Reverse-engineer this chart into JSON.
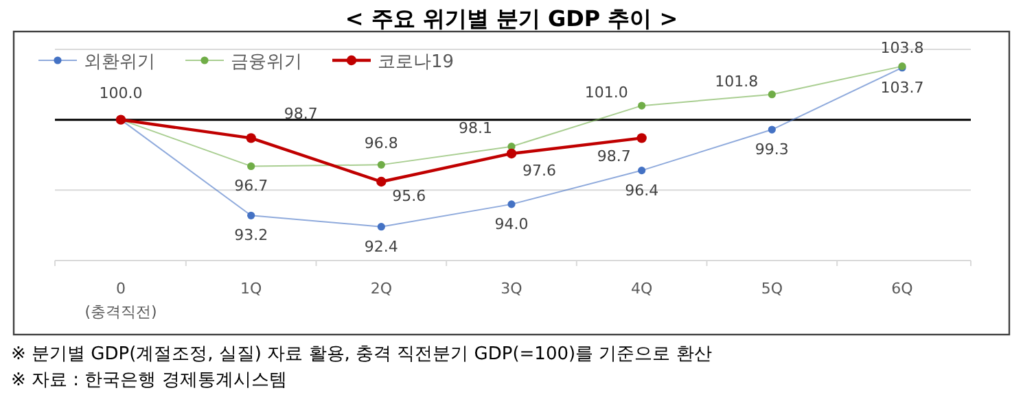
{
  "chart_data": {
    "type": "line",
    "title": "< 주요 위기별 분기 GDP 추이 >",
    "categories": [
      "0\n(충격직전)",
      "1Q",
      "2Q",
      "3Q",
      "4Q",
      "5Q",
      "6Q"
    ],
    "series": [
      {
        "name": "외환위기",
        "color": "#4472c4",
        "values": [
          100.0,
          93.2,
          92.4,
          94.0,
          96.4,
          99.3,
          103.7
        ],
        "value_labels": [
          "100.0",
          "93.2",
          "92.4",
          "94.0",
          "96.4",
          "99.3",
          "103.7"
        ]
      },
      {
        "name": "금융위기",
        "color": "#70ad47",
        "values": [
          100.0,
          96.7,
          96.8,
          98.1,
          101.0,
          101.8,
          103.8
        ],
        "value_labels": [
          null,
          "96.7",
          "96.8",
          "98.1",
          "101.0",
          "101.8",
          "103.8"
        ]
      },
      {
        "name": "코로나19",
        "color": "#c00000",
        "values": [
          100.0,
          98.7,
          95.6,
          97.6,
          98.7,
          null,
          null
        ],
        "value_labels": [
          null,
          "98.7",
          "95.6",
          "97.6",
          "98.7",
          null,
          null
        ]
      }
    ],
    "ylim": [
      90,
      105
    ],
    "tick_labels": "x",
    "legend": "top left",
    "marker": "circle",
    "ref_lines": [
      {
        "axis": "y",
        "value": 95,
        "color": "#d9d9d9"
      },
      {
        "axis": "y",
        "value": 105,
        "color": "#d9d9d9"
      },
      {
        "axis": "y",
        "value": 100,
        "color": "#000000"
      }
    ],
    "annotations": [
      "※ 분기별 GDP(계절조정, 실질) 자료 활용, 충격 직전분기 GDP(=100)를 기준으로 환산",
      "※ 자료 : 한국은행 경제통계시스템"
    ]
  }
}
